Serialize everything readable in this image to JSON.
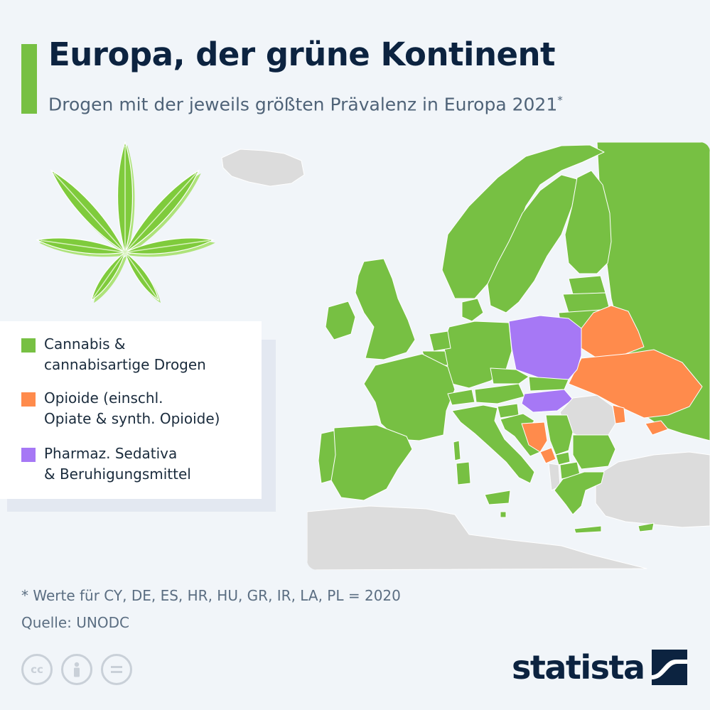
{
  "title": "Europa, der grüne Kontinent",
  "subtitle": "Drogen mit der jeweils größten Prävalenz in Europa 2021",
  "subtitle_mark": "*",
  "legend": [
    {
      "label": "Cannabis &\ncannabisartige Drogen",
      "color": "#77c043"
    },
    {
      "label": "Opioide (einschl.\nOpiate & synth. Opioide)",
      "color": "#ff8b4c"
    },
    {
      "label": "Pharmaz. Sedativa\n& Beruhigungsmittel",
      "color": "#a678f5"
    }
  ],
  "map": {
    "no_data_color": "#dcdcdc",
    "border_color": "#ffffff",
    "regions": [
      {
        "name": "Iceland",
        "category": "no-data"
      },
      {
        "name": "Norway",
        "category": "cannabis"
      },
      {
        "name": "Sweden",
        "category": "cannabis"
      },
      {
        "name": "Finland",
        "category": "cannabis"
      },
      {
        "name": "Russia",
        "category": "cannabis"
      },
      {
        "name": "Ireland",
        "category": "cannabis"
      },
      {
        "name": "United Kingdom",
        "category": "cannabis"
      },
      {
        "name": "Denmark",
        "category": "cannabis"
      },
      {
        "name": "Estonia",
        "category": "cannabis"
      },
      {
        "name": "Latvia",
        "category": "cannabis"
      },
      {
        "name": "Lithuania",
        "category": "cannabis"
      },
      {
        "name": "Belarus",
        "category": "opioids"
      },
      {
        "name": "Poland",
        "category": "sedatives"
      },
      {
        "name": "Germany",
        "category": "cannabis"
      },
      {
        "name": "Netherlands",
        "category": "cannabis"
      },
      {
        "name": "Belgium",
        "category": "cannabis"
      },
      {
        "name": "France",
        "category": "cannabis"
      },
      {
        "name": "Spain",
        "category": "cannabis"
      },
      {
        "name": "Portugal",
        "category": "cannabis"
      },
      {
        "name": "Switzerland",
        "category": "cannabis"
      },
      {
        "name": "Austria",
        "category": "cannabis"
      },
      {
        "name": "Czechia",
        "category": "cannabis"
      },
      {
        "name": "Slovakia",
        "category": "cannabis"
      },
      {
        "name": "Hungary",
        "category": "sedatives"
      },
      {
        "name": "Ukraine",
        "category": "opioids"
      },
      {
        "name": "Moldova",
        "category": "opioids"
      },
      {
        "name": "Crimea",
        "category": "opioids"
      },
      {
        "name": "Romania",
        "category": "no-data"
      },
      {
        "name": "Italy",
        "category": "cannabis"
      },
      {
        "name": "Sardinia",
        "category": "cannabis"
      },
      {
        "name": "Corsica",
        "category": "cannabis"
      },
      {
        "name": "Sicily",
        "category": "cannabis"
      },
      {
        "name": "Malta",
        "category": "cannabis"
      },
      {
        "name": "Slovenia",
        "category": "cannabis"
      },
      {
        "name": "Croatia",
        "category": "cannabis"
      },
      {
        "name": "Bosnia and Herzegovina",
        "category": "opioids"
      },
      {
        "name": "Montenegro",
        "category": "opioids"
      },
      {
        "name": "Serbia",
        "category": "cannabis"
      },
      {
        "name": "Kosovo",
        "category": "cannabis"
      },
      {
        "name": "Albania",
        "category": "no-data"
      },
      {
        "name": "North Macedonia",
        "category": "cannabis"
      },
      {
        "name": "Bulgaria",
        "category": "cannabis"
      },
      {
        "name": "Greece",
        "category": "cannabis"
      },
      {
        "name": "Crete",
        "category": "cannabis"
      },
      {
        "name": "Cyprus",
        "category": "cannabis"
      },
      {
        "name": "Turkey",
        "category": "no-data"
      },
      {
        "name": "North Africa",
        "category": "no-data"
      }
    ]
  },
  "footnote": "* Werte für CY, DE, ES, HR, HU, GR, IR, LA, PL = 2020",
  "source": "Quelle: UNODC",
  "license_icons": [
    "cc-icon",
    "person-icon",
    "equals-icon"
  ],
  "brand": "statista",
  "colors": {
    "accent": "#77c043",
    "cannabis": "#77c043",
    "opioids": "#ff8b4c",
    "sedatives": "#a678f5",
    "no_data": "#dcdcdc",
    "title": "#0c2340",
    "background": "#f1f5f9"
  }
}
